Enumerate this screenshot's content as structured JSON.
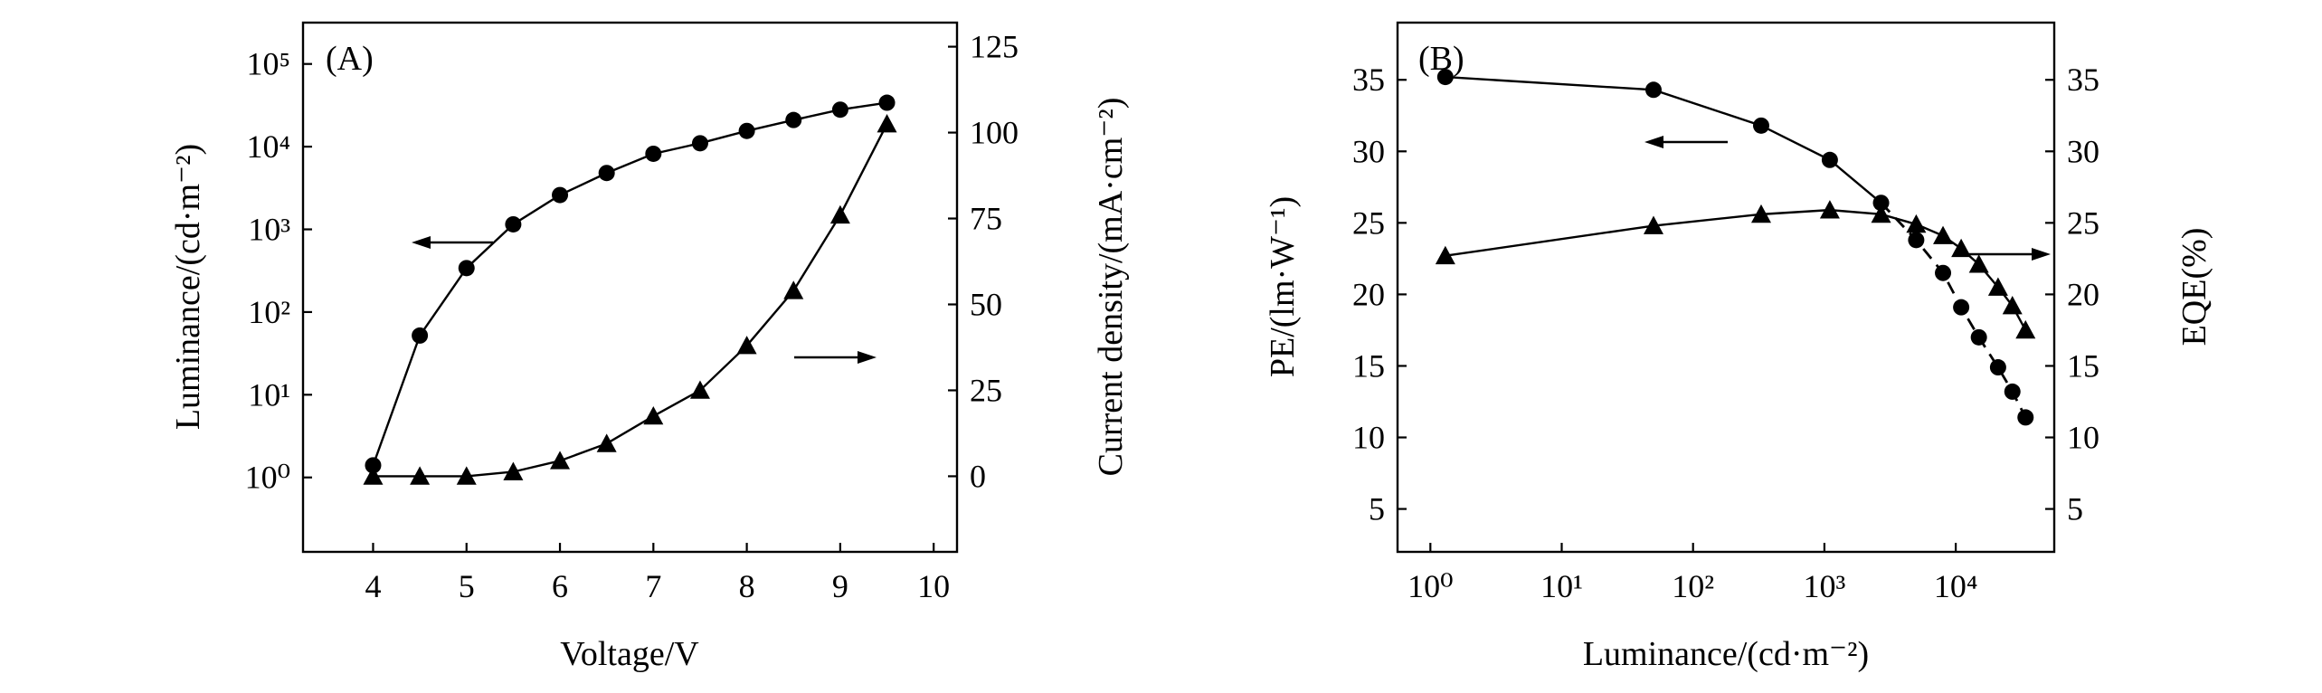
{
  "chart_data": [
    {
      "id": "A",
      "type": "line",
      "panel_label": "(A)",
      "xlabel": "Voltage/V",
      "ylabel_left": "Luminance/(cd·m⁻²)",
      "ylabel_right": "Current density/(mA·cm⁻²)",
      "x_ticks": [
        "4",
        "5",
        "6",
        "7",
        "8",
        "9",
        "10"
      ],
      "y_left_ticks": [
        "10⁰",
        "10¹",
        "10²",
        "10³",
        "10⁴",
        "10⁵"
      ],
      "y_right_ticks": [
        "0",
        "25",
        "50",
        "75",
        "100",
        "125"
      ],
      "xlim": [
        3.25,
        10.25
      ],
      "ylim_left_log10": [
        -0.9,
        5.5
      ],
      "ylim_right": [
        -22,
        132
      ],
      "series": [
        {
          "name": "Luminance",
          "axis": "left",
          "marker": "circle",
          "arrow": "left",
          "x": [
            4,
            4.5,
            5,
            5.5,
            6,
            6.5,
            7,
            7.5,
            8,
            8.5,
            9,
            9.5
          ],
          "values": [
            1.4,
            52,
            340,
            1150,
            2600,
            4800,
            8200,
            11000,
            15500,
            21000,
            28000,
            34000
          ]
        },
        {
          "name": "Current density",
          "axis": "right",
          "marker": "triangle",
          "arrow": "right",
          "x": [
            4,
            4.5,
            5,
            5.5,
            6,
            6.5,
            7,
            7.5,
            8,
            8.5,
            9,
            9.5
          ],
          "values": [
            0,
            0,
            0,
            1.3,
            4.5,
            9.5,
            17.5,
            25,
            38,
            54,
            76,
            102.5
          ]
        }
      ]
    },
    {
      "id": "B",
      "type": "line",
      "panel_label": "(B)",
      "xlabel": "Luminance/(cd·m⁻²)",
      "ylabel_left": "PE/(lm·W⁻¹)",
      "ylabel_right": "EQE(%)",
      "x_ticks": [
        "10⁰",
        "10¹",
        "10²",
        "10³",
        "10⁴"
      ],
      "y_left_ticks": [
        "5",
        "10",
        "15",
        "20",
        "25",
        "30",
        "35"
      ],
      "y_right_ticks": [
        "5",
        "10",
        "15",
        "20",
        "25",
        "30",
        "35"
      ],
      "xlim_log10": [
        -0.25,
        4.75
      ],
      "ylim": [
        2,
        39
      ],
      "series": [
        {
          "name": "PE",
          "axis": "left",
          "marker": "circle",
          "arrow": "left",
          "x": [
            1.3,
            50,
            330,
            1100,
            2700,
            5000,
            8000,
            11000,
            15000,
            21000,
            27000,
            34000
          ],
          "values": [
            35.2,
            34.3,
            31.8,
            29.4,
            26.4,
            23.8,
            21.5,
            19.1,
            17.0,
            14.9,
            13.2,
            11.4
          ]
        },
        {
          "name": "EQE",
          "axis": "right",
          "marker": "triangle",
          "arrow": "right",
          "x": [
            1.3,
            50,
            330,
            1100,
            2700,
            5000,
            8000,
            11000,
            15000,
            21000,
            27000,
            34000
          ],
          "values": [
            22.7,
            24.8,
            25.6,
            25.9,
            25.6,
            24.9,
            24.1,
            23.2,
            22.1,
            20.5,
            19.2,
            17.5
          ]
        }
      ]
    }
  ]
}
